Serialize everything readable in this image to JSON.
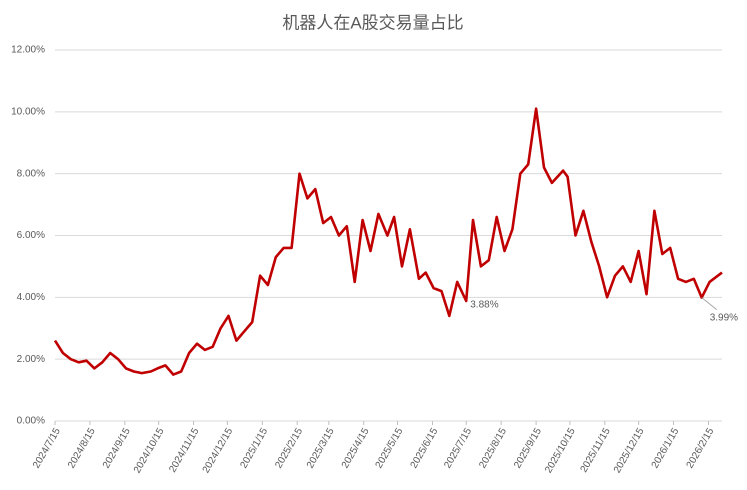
{
  "chart_data": {
    "type": "line",
    "title": "机器人在A股交易量占比",
    "x": [
      "2024/7/15",
      "2024/7/22",
      "2024/7/29",
      "2024/8/5",
      "2024/8/12",
      "2024/8/19",
      "2024/8/26",
      "2024/9/2",
      "2024/9/9",
      "2024/9/16",
      "2024/9/23",
      "2024/9/30",
      "2024/10/8",
      "2024/10/14",
      "2024/10/21",
      "2024/10/28",
      "2024/11/4",
      "2024/11/11",
      "2024/11/18",
      "2024/11/25",
      "2024/12/2",
      "2024/12/9",
      "2024/12/16",
      "2024/12/23",
      "2024/12/30",
      "2025/1/6",
      "2025/1/13",
      "2025/1/20",
      "2025/1/27",
      "2025/2/3",
      "2025/2/10",
      "2025/2/17",
      "2025/2/24",
      "2025/3/3",
      "2025/3/10",
      "2025/3/17",
      "2025/3/24",
      "2025/3/31",
      "2025/4/7",
      "2025/4/14",
      "2025/4/21",
      "2025/4/28",
      "2025/5/6",
      "2025/5/12",
      "2025/5/19",
      "2025/5/26",
      "2025/6/3",
      "2025/6/9",
      "2025/6/16",
      "2025/6/23",
      "2025/6/30",
      "2025/7/7",
      "2025/7/15",
      "2025/7/21",
      "2025/7/28",
      "2025/8/4",
      "2025/8/11",
      "2025/8/18",
      "2025/8/25",
      "2025/9/1",
      "2025/9/8",
      "2025/9/15",
      "2025/9/22",
      "2025/9/29",
      "2025/10/9",
      "2025/10/13",
      "2025/10/20",
      "2025/10/27",
      "2025/11/3",
      "2025/11/10",
      "2025/11/17",
      "2025/11/24",
      "2025/12/1",
      "2025/12/8",
      "2025/12/15",
      "2025/12/22",
      "2025/12/29",
      "2026/1/5",
      "2026/1/12",
      "2026/1/19",
      "2026/1/26",
      "2026/2/2",
      "2026/2/9",
      "2026/2/16",
      "2026/2/27"
    ],
    "series": [
      {
        "color": "#c00000",
        "values": [
          2.6,
          2.2,
          2.0,
          1.9,
          1.95,
          1.7,
          1.9,
          2.2,
          2.0,
          1.7,
          1.6,
          1.55,
          1.6,
          1.7,
          1.8,
          1.5,
          1.6,
          2.2,
          2.5,
          2.3,
          2.4,
          3.0,
          3.4,
          2.6,
          2.9,
          3.2,
          4.7,
          4.4,
          5.3,
          5.6,
          5.6,
          8.0,
          7.2,
          7.5,
          6.4,
          6.6,
          6.0,
          6.3,
          4.5,
          6.5,
          5.5,
          6.7,
          6.0,
          6.6,
          5.0,
          6.2,
          4.6,
          4.8,
          4.3,
          4.2,
          3.4,
          4.5,
          3.88,
          6.5,
          5.0,
          5.2,
          6.6,
          5.5,
          6.2,
          8.0,
          8.3,
          10.1,
          8.2,
          7.7,
          8.1,
          7.9,
          6.0,
          6.8,
          5.8,
          5.0,
          4.0,
          4.7,
          5.0,
          4.5,
          5.5,
          4.1,
          6.8,
          5.4,
          5.6,
          4.6,
          4.5,
          4.6,
          3.99,
          4.5,
          4.8
        ]
      }
    ],
    "annotations": [
      {
        "text": "3.88%",
        "x": "2025/7/15",
        "y": 3.88
      },
      {
        "text": "3.99%",
        "x": "2026/2/9",
        "y": 3.99
      }
    ],
    "xlim": [
      "2024/7/15",
      "2026/2/27"
    ],
    "xticks": [
      "2024/7/15",
      "2024/8/15",
      "2024/9/15",
      "2024/10/15",
      "2024/11/15",
      "2024/12/15",
      "2025/1/15",
      "2025/2/15",
      "2025/3/15",
      "2025/4/15",
      "2025/5/15",
      "2025/6/15",
      "2025/7/15",
      "2025/8/15",
      "2025/9/15",
      "2025/10/15",
      "2025/11/15",
      "2025/12/15",
      "2026/1/15",
      "2026/2/15"
    ],
    "ylim": [
      0,
      12
    ],
    "yticks": [
      {
        "value": 0,
        "label": "0.00%"
      },
      {
        "value": 2,
        "label": "2.00%"
      },
      {
        "value": 4,
        "label": "4.00%"
      },
      {
        "value": 6,
        "label": "6.00%"
      },
      {
        "value": 8,
        "label": "8.00%"
      },
      {
        "value": 10,
        "label": "10.00%"
      },
      {
        "value": 12,
        "label": "12.00%"
      }
    ],
    "grid": true
  }
}
